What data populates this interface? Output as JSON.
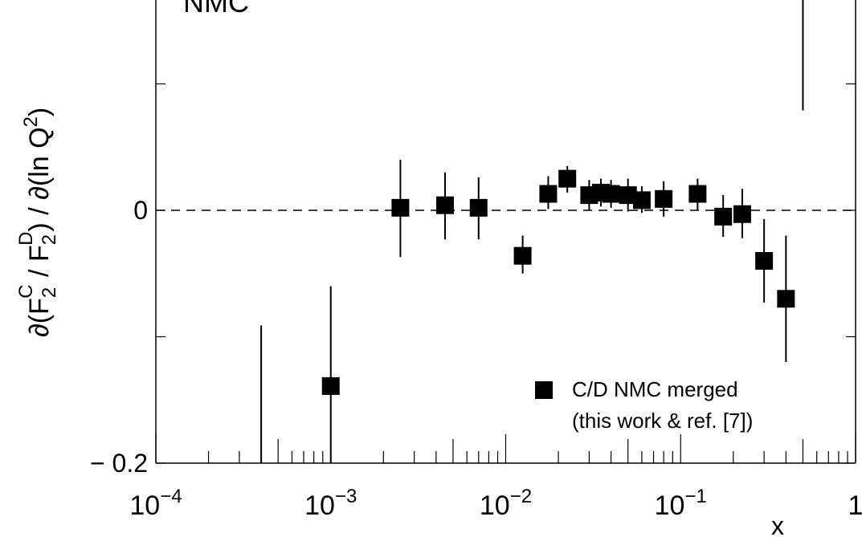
{
  "chart_data": {
    "type": "scatter",
    "experiment_label": "NMC",
    "xlabel": "x",
    "ylabel": {
      "base": "∂(F",
      "sub1": "2",
      "sup1": "C",
      "mid": " / F",
      "sub2": "2",
      "sup2": "D",
      "tail": ") / ∂(ln Q",
      "sup3": "2",
      "end": ")"
    },
    "x_scale": "log",
    "xlim": [
      0.0001,
      1
    ],
    "ylim": [
      -0.2,
      0.0
    ],
    "x_ticks": [
      {
        "base": "10",
        "exp": "−4",
        "value": 0.0001
      },
      {
        "base": "10",
        "exp": "−3",
        "value": 0.001
      },
      {
        "base": "10",
        "exp": "−2",
        "value": 0.01
      },
      {
        "base": "10",
        "exp": "−1",
        "value": 0.1
      },
      {
        "base": "1",
        "exp": "",
        "value": 1
      }
    ],
    "y_ticks": [
      {
        "label": "0",
        "value": 0
      },
      {
        "label": "− 0.2",
        "value": -0.2
      }
    ],
    "reference_line": {
      "y": 0,
      "style": "dashed"
    },
    "legend": {
      "position": "bottom-right",
      "line1": "C/D NMC merged",
      "line2": "(this work & ref. [7])"
    },
    "series": [
      {
        "name": "C/D NMC merged",
        "marker": "filled-square",
        "color": "#000000",
        "points": [
          {
            "x": 0.0004,
            "y": null,
            "err_lo": -0.2,
            "err_hi": -0.091
          },
          {
            "x": 0.001,
            "y": -0.139,
            "err_lo": -0.2,
            "err_hi": -0.06
          },
          {
            "x": 0.0025,
            "y": 0.002,
            "err_lo": -0.037,
            "err_hi": 0.04
          },
          {
            "x": 0.0045,
            "y": 0.004,
            "err_lo": -0.023,
            "err_hi": 0.03
          },
          {
            "x": 0.007,
            "y": 0.002,
            "err_lo": -0.023,
            "err_hi": 0.026
          },
          {
            "x": 0.0125,
            "y": -0.036,
            "err_lo": -0.05,
            "err_hi": -0.02
          },
          {
            "x": 0.0175,
            "y": 0.013,
            "err_lo": 0.001,
            "err_hi": 0.027
          },
          {
            "x": 0.0225,
            "y": 0.025,
            "err_lo": 0.014,
            "err_hi": 0.035
          },
          {
            "x": 0.03,
            "y": 0.012,
            "err_lo": 0.0,
            "err_hi": 0.024
          },
          {
            "x": 0.035,
            "y": 0.014,
            "err_lo": 0.003,
            "err_hi": 0.025
          },
          {
            "x": 0.04,
            "y": 0.013,
            "err_lo": 0.002,
            "err_hi": 0.024
          },
          {
            "x": 0.05,
            "y": 0.012,
            "err_lo": -0.001,
            "err_hi": 0.025
          },
          {
            "x": 0.06,
            "y": 0.008,
            "err_lo": -0.002,
            "err_hi": 0.019
          },
          {
            "x": 0.08,
            "y": 0.009,
            "err_lo": -0.005,
            "err_hi": 0.023
          },
          {
            "x": 0.125,
            "y": 0.013,
            "err_lo": 0.0,
            "err_hi": 0.025
          },
          {
            "x": 0.175,
            "y": -0.005,
            "err_lo": -0.021,
            "err_hi": 0.012
          },
          {
            "x": 0.225,
            "y": -0.003,
            "err_lo": -0.022,
            "err_hi": 0.017
          },
          {
            "x": 0.3,
            "y": -0.04,
            "err_lo": -0.073,
            "err_hi": -0.007
          },
          {
            "x": 0.4,
            "y": -0.07,
            "err_lo": -0.12,
            "err_hi": -0.02
          },
          {
            "x": 0.5,
            "y": null,
            "err_lo": 0.079,
            "err_hi": 0.17
          }
        ]
      }
    ]
  }
}
